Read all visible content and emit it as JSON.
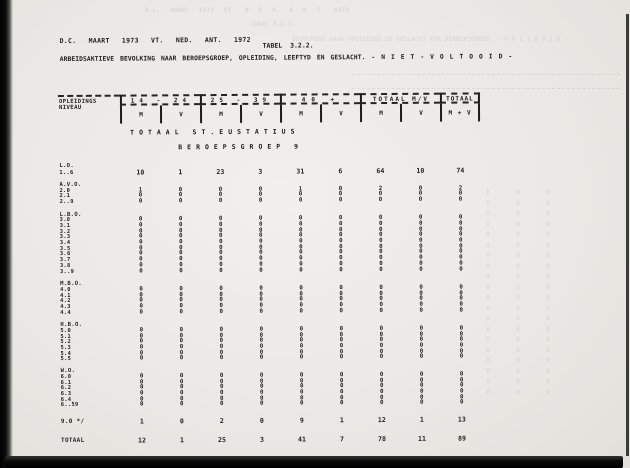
{
  "colors": {
    "ink": "#1d1d1b",
    "paper": "#ECEAE6"
  },
  "header": {
    "doc_line1": "D.C. MAART 1973 VT. NED. ANT. 1972",
    "tabel_ref": "TABEL  3.2.2.",
    "doc_line2": "ARBEIDSAKTIEVE BEVOLKING NAAR BEROEPSGROEP, OPLEIDING, LEEFTYD EN GESLACHT.  - N I E T - V O L T O O I D -"
  },
  "table": {
    "corner_label_line1": "OPLEIDINGS",
    "corner_label_line2": "NIVEAU",
    "col_groups": [
      "14 - 24",
      "25 - 39",
      "40 +",
      "TOTAAL M/V",
      "TOTAAL"
    ],
    "sub_cols": [
      "M",
      "V",
      "M",
      "V",
      "M",
      "V",
      "M",
      "V",
      "M + V"
    ],
    "section_title1": "TOTAAL ST.EUSTATIUS",
    "section_title2": "BEROEPSGROEP 9",
    "blocks": [
      {
        "header": "L.O.",
        "rows": [
          {
            "label": "1..6",
            "values": [
              "10",
              "1",
              "23",
              "3",
              "31",
              "6",
              "64",
              "10",
              "74"
            ]
          }
        ]
      },
      {
        "header": "A.V.O.",
        "rows": [
          {
            "label": "2.0",
            "values": [
              "1",
              "0",
              "0",
              "0",
              "1",
              "0",
              "2",
              "0",
              "2"
            ]
          },
          {
            "label": "2.1",
            "values": [
              "0",
              "0",
              "0",
              "0",
              "0",
              "0",
              "0",
              "0",
              "0"
            ]
          },
          {
            "label": "2..9",
            "values": [
              "0",
              "0",
              "0",
              "0",
              "0",
              "0",
              "0",
              "0",
              "0"
            ]
          }
        ]
      },
      {
        "header": "L.B.O.",
        "rows": [
          {
            "label": "3.0",
            "values": [
              "0",
              "0",
              "0",
              "0",
              "0",
              "0",
              "0",
              "0",
              "0"
            ]
          },
          {
            "label": "3.1",
            "values": [
              "0",
              "0",
              "0",
              "0",
              "0",
              "0",
              "0",
              "0",
              "0"
            ]
          },
          {
            "label": "3.2",
            "values": [
              "0",
              "0",
              "0",
              "0",
              "0",
              "0",
              "0",
              "0",
              "0"
            ]
          },
          {
            "label": "3.3",
            "values": [
              "0",
              "0",
              "0",
              "0",
              "0",
              "0",
              "0",
              "0",
              "0"
            ]
          },
          {
            "label": "3.4",
            "values": [
              "0",
              "0",
              "0",
              "0",
              "0",
              "0",
              "0",
              "0",
              "0"
            ]
          },
          {
            "label": "3.5",
            "values": [
              "0",
              "0",
              "0",
              "0",
              "0",
              "0",
              "0",
              "0",
              "0"
            ]
          },
          {
            "label": "3.6",
            "values": [
              "0",
              "0",
              "0",
              "0",
              "0",
              "0",
              "0",
              "0",
              "0"
            ]
          },
          {
            "label": "3.7",
            "values": [
              "0",
              "0",
              "0",
              "0",
              "0",
              "0",
              "0",
              "0",
              "0"
            ]
          },
          {
            "label": "3.8",
            "values": [
              "0",
              "0",
              "0",
              "0",
              "0",
              "0",
              "0",
              "0",
              "0"
            ]
          },
          {
            "label": "3..9",
            "values": [
              "0",
              "0",
              "0",
              "0",
              "0",
              "0",
              "0",
              "0",
              "0"
            ]
          }
        ]
      },
      {
        "header": "M.B.O.",
        "rows": [
          {
            "label": "4.0",
            "values": [
              "0",
              "0",
              "0",
              "0",
              "0",
              "0",
              "0",
              "0",
              "0"
            ]
          },
          {
            "label": "4.1",
            "values": [
              "0",
              "0",
              "0",
              "0",
              "0",
              "0",
              "0",
              "0",
              "0"
            ]
          },
          {
            "label": "4.2",
            "values": [
              "0",
              "0",
              "0",
              "0",
              "0",
              "0",
              "0",
              "0",
              "0"
            ]
          },
          {
            "label": "4.3",
            "values": [
              "0",
              "0",
              "0",
              "0",
              "0",
              "0",
              "0",
              "0",
              "0"
            ]
          },
          {
            "label": "4.4",
            "values": [
              "0",
              "0",
              "0",
              "0",
              "0",
              "0",
              "0",
              "0",
              "0"
            ]
          }
        ]
      },
      {
        "header": "H.B.O.",
        "rows": [
          {
            "label": "5.0",
            "values": [
              "0",
              "0",
              "0",
              "0",
              "0",
              "0",
              "0",
              "0",
              "0"
            ]
          },
          {
            "label": "5.1",
            "values": [
              "0",
              "0",
              "0",
              "0",
              "0",
              "0",
              "0",
              "0",
              "0"
            ]
          },
          {
            "label": "5.2",
            "values": [
              "0",
              "0",
              "0",
              "0",
              "0",
              "0",
              "0",
              "0",
              "0"
            ]
          },
          {
            "label": "5.3",
            "values": [
              "0",
              "0",
              "0",
              "0",
              "0",
              "0",
              "0",
              "0",
              "0"
            ]
          },
          {
            "label": "5.4",
            "values": [
              "0",
              "0",
              "0",
              "0",
              "0",
              "0",
              "0",
              "0",
              "0"
            ]
          },
          {
            "label": "5.5",
            "values": [
              "0",
              "0",
              "0",
              "0",
              "0",
              "0",
              "0",
              "0",
              "0"
            ]
          }
        ]
      },
      {
        "header": "W.O.",
        "rows": [
          {
            "label": "6.0",
            "values": [
              "0",
              "0",
              "0",
              "0",
              "0",
              "0",
              "0",
              "0",
              "0"
            ]
          },
          {
            "label": "6.1",
            "values": [
              "0",
              "0",
              "0",
              "0",
              "0",
              "0",
              "0",
              "0",
              "0"
            ]
          },
          {
            "label": "6.2",
            "values": [
              "0",
              "0",
              "0",
              "0",
              "0",
              "0",
              "0",
              "0",
              "0"
            ]
          },
          {
            "label": "6.3",
            "values": [
              "0",
              "0",
              "0",
              "0",
              "0",
              "0",
              "0",
              "0",
              "0"
            ]
          },
          {
            "label": "6.4",
            "values": [
              "0",
              "0",
              "0",
              "0",
              "0",
              "0",
              "0",
              "0",
              "0"
            ]
          },
          {
            "label": "6..59",
            "values": [
              "0",
              "0",
              "0",
              "0",
              "0",
              "0",
              "0",
              "0",
              "0"
            ]
          }
        ]
      }
    ],
    "footer_rows": [
      {
        "label": "9.0 */",
        "values": [
          "1",
          "0",
          "2",
          "0",
          "9",
          "1",
          "12",
          "1",
          "13"
        ]
      },
      {
        "label": "TOTAAL",
        "values": [
          "12",
          "1",
          "25",
          "3",
          "41",
          "7",
          "78",
          "11",
          "89"
        ]
      }
    ]
  },
  "ghost": {
    "line1": "D.L. MAART 1973 VT. N E D. A N T. 1973",
    "line2": "TABEL 3.2.3.",
    "line3": "BEVOLKING NAAR OPLEIDING EN GESLACHT PER BEROEPSGROEP. - V O L T O O I D -",
    "col": "0\n0\n0\n0\n0\n0\n0\n0\n0\n0\n0\n0\n0\n0\n0\n0\n0\n0\n0\n0"
  }
}
